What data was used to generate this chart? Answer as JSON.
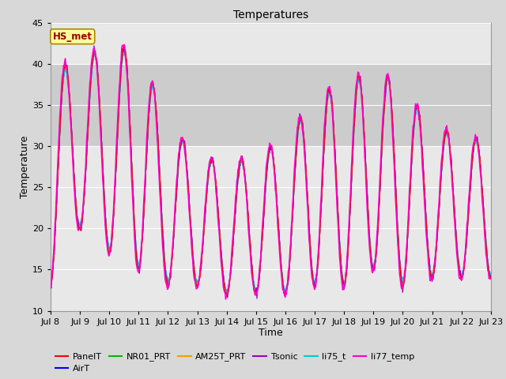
{
  "title": "Temperatures",
  "xlabel": "Time",
  "ylabel": "Temperature",
  "ylim": [
    10,
    45
  ],
  "x_tick_labels": [
    "Jul 8",
    "Jul 9",
    "Jul 10",
    "Jul 11",
    "Jul 12",
    "Jul 13",
    "Jul 14",
    "Jul 15",
    "Jul 16",
    "Jul 17",
    "Jul 18",
    "Jul 19",
    "Jul 20",
    "Jul 21",
    "Jul 22",
    "Jul 23"
  ],
  "shaded_band": [
    30,
    40
  ],
  "series_colors": {
    "PanelT": "#ff0000",
    "AirT": "#0000ff",
    "NR01_PRT": "#00bb00",
    "AM25T_PRT": "#ff9900",
    "Tsonic": "#9900cc",
    "li75_t": "#00cccc",
    "li77_temp": "#ff00cc"
  },
  "annotation_text": "HS_met",
  "annotation_bg": "#ffff99",
  "annotation_border": "#aa8800",
  "annotation_text_color": "#990000",
  "fig_bg": "#d8d8d8",
  "plot_bg": "#e8e8e8",
  "title_fontsize": 10,
  "label_fontsize": 9,
  "tick_fontsize": 8,
  "legend_fontsize": 8
}
